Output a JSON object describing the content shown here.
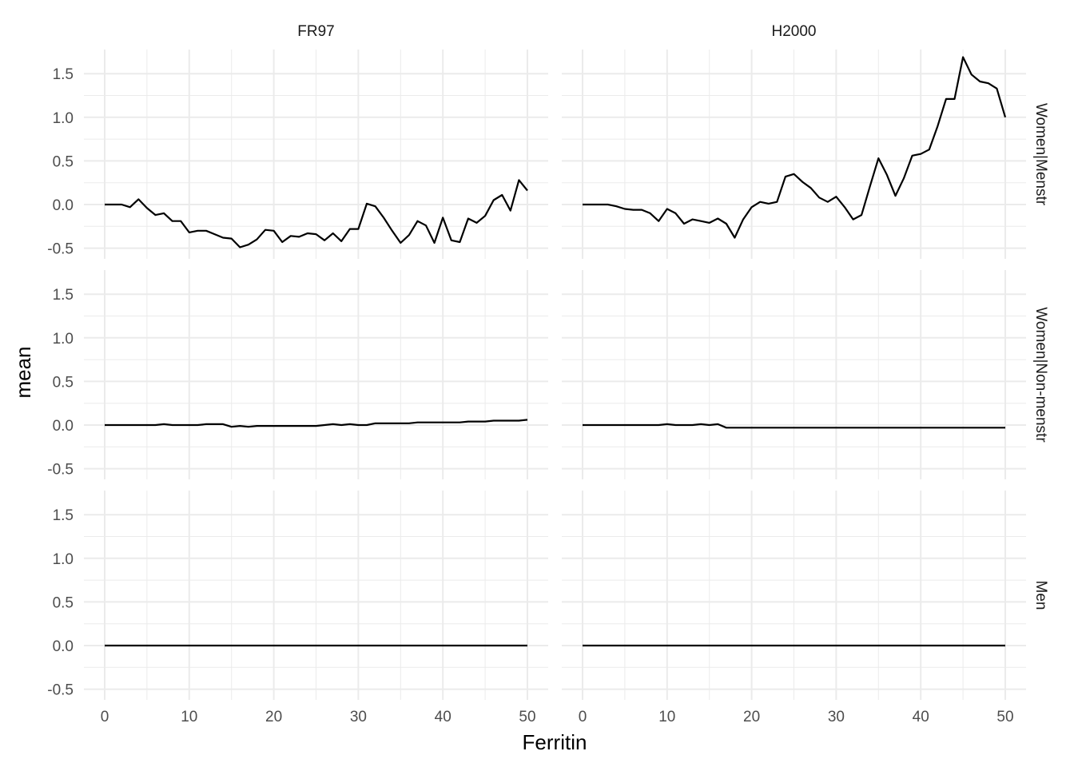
{
  "chart_data": {
    "type": "line",
    "xlabel": "Ferritin",
    "ylabel": "mean",
    "xlim": [
      0,
      50
    ],
    "ylim": [
      -0.5,
      1.7
    ],
    "x_ticks": [
      0,
      10,
      20,
      30,
      40,
      50
    ],
    "y_ticks": [
      -0.5,
      0.0,
      0.5,
      1.0,
      1.5
    ],
    "x_tick_labels": [
      "0",
      "10",
      "20",
      "30",
      "40",
      "50"
    ],
    "y_tick_labels": [
      "-0.5",
      "0.0",
      "0.5",
      "1.0",
      "1.5"
    ],
    "grid": true,
    "facet_columns": [
      "FR97",
      "H2000"
    ],
    "facet_rows": [
      "Women|Menstr",
      "Women|Non-menstr",
      "Men"
    ],
    "panels": [
      {
        "column": "FR97",
        "row": "Women|Menstr",
        "x": [
          0,
          1,
          2,
          3,
          4,
          5,
          6,
          7,
          8,
          9,
          10,
          11,
          12,
          13,
          14,
          15,
          16,
          17,
          18,
          19,
          20,
          21,
          22,
          23,
          24,
          25,
          26,
          27,
          28,
          29,
          30,
          31,
          32,
          33,
          34,
          35,
          36,
          37,
          38,
          39,
          40,
          41,
          42,
          43,
          44,
          45,
          46,
          47,
          48,
          49,
          50
        ],
        "y": [
          0,
          0,
          0,
          -0.03,
          0.06,
          -0.04,
          -0.12,
          -0.1,
          -0.19,
          -0.19,
          -0.32,
          -0.3,
          -0.3,
          -0.34,
          -0.38,
          -0.39,
          -0.49,
          -0.46,
          -0.4,
          -0.29,
          -0.3,
          -0.43,
          -0.36,
          -0.37,
          -0.33,
          -0.34,
          -0.41,
          -0.33,
          -0.42,
          -0.28,
          -0.28,
          0.01,
          -0.02,
          -0.15,
          -0.3,
          -0.44,
          -0.35,
          -0.19,
          -0.24,
          -0.44,
          -0.15,
          -0.41,
          -0.43,
          -0.16,
          -0.21,
          -0.13,
          0.05,
          0.11,
          -0.07,
          0.28,
          0.16
        ]
      },
      {
        "column": "H2000",
        "row": "Women|Menstr",
        "x": [
          0,
          1,
          2,
          3,
          4,
          5,
          6,
          7,
          8,
          9,
          10,
          11,
          12,
          13,
          14,
          15,
          16,
          17,
          18,
          19,
          20,
          21,
          22,
          23,
          24,
          25,
          26,
          27,
          28,
          29,
          30,
          31,
          32,
          33,
          34,
          35,
          36,
          37,
          38,
          39,
          40,
          41,
          42,
          43,
          44,
          45,
          46,
          47,
          48,
          49,
          50
        ],
        "y": [
          0,
          0,
          0,
          0,
          -0.02,
          -0.05,
          -0.06,
          -0.06,
          -0.1,
          -0.19,
          -0.05,
          -0.1,
          -0.22,
          -0.17,
          -0.19,
          -0.21,
          -0.16,
          -0.22,
          -0.38,
          -0.17,
          -0.03,
          0.03,
          0.01,
          0.03,
          0.32,
          0.35,
          0.26,
          0.19,
          0.08,
          0.03,
          0.09,
          -0.03,
          -0.17,
          -0.12,
          0.21,
          0.53,
          0.34,
          0.1,
          0.3,
          0.56,
          0.58,
          0.63,
          0.9,
          1.21,
          1.21,
          1.69,
          1.49,
          1.41,
          1.39,
          1.33,
          1.0
        ]
      },
      {
        "column": "FR97",
        "row": "Women|Non-menstr",
        "x": [
          0,
          1,
          2,
          3,
          4,
          5,
          6,
          7,
          8,
          9,
          10,
          11,
          12,
          13,
          14,
          15,
          16,
          17,
          18,
          19,
          20,
          21,
          22,
          23,
          24,
          25,
          26,
          27,
          28,
          29,
          30,
          31,
          32,
          33,
          34,
          35,
          36,
          37,
          38,
          39,
          40,
          41,
          42,
          43,
          44,
          45,
          46,
          47,
          48,
          49,
          50
        ],
        "y": [
          0,
          0,
          0,
          0,
          0,
          0,
          0,
          0.01,
          0,
          0,
          0,
          0,
          0.01,
          0.01,
          0.01,
          -0.02,
          -0.01,
          -0.02,
          -0.01,
          -0.01,
          -0.01,
          -0.01,
          -0.01,
          -0.01,
          -0.01,
          -0.01,
          0,
          0.01,
          0,
          0.01,
          0,
          0,
          0.02,
          0.02,
          0.02,
          0.02,
          0.02,
          0.03,
          0.03,
          0.03,
          0.03,
          0.03,
          0.03,
          0.04,
          0.04,
          0.04,
          0.05,
          0.05,
          0.05,
          0.05,
          0.06
        ]
      },
      {
        "column": "H2000",
        "row": "Women|Non-menstr",
        "x": [
          0,
          1,
          2,
          3,
          4,
          5,
          6,
          7,
          8,
          9,
          10,
          11,
          12,
          13,
          14,
          15,
          16,
          17,
          18,
          19,
          20,
          21,
          22,
          23,
          24,
          25,
          26,
          27,
          28,
          29,
          30,
          31,
          32,
          33,
          34,
          35,
          36,
          37,
          38,
          39,
          40,
          41,
          42,
          43,
          44,
          45,
          46,
          47,
          48,
          49,
          50
        ],
        "y": [
          0,
          0,
          0,
          0,
          0,
          0,
          0,
          0,
          0,
          0,
          0.01,
          0,
          0,
          0,
          0.01,
          0,
          0.01,
          -0.03,
          -0.03,
          -0.03,
          -0.03,
          -0.03,
          -0.03,
          -0.03,
          -0.03,
          -0.03,
          -0.03,
          -0.03,
          -0.03,
          -0.03,
          -0.03,
          -0.03,
          -0.03,
          -0.03,
          -0.03,
          -0.03,
          -0.03,
          -0.03,
          -0.03,
          -0.03,
          -0.03,
          -0.03,
          -0.03,
          -0.03,
          -0.03,
          -0.03,
          -0.03,
          -0.03,
          -0.03,
          -0.03,
          -0.03
        ]
      },
      {
        "column": "FR97",
        "row": "Men",
        "x": [
          0,
          50
        ],
        "y": [
          0,
          0
        ]
      },
      {
        "column": "H2000",
        "row": "Men",
        "x": [
          0,
          50
        ],
        "y": [
          0,
          0
        ]
      }
    ]
  }
}
